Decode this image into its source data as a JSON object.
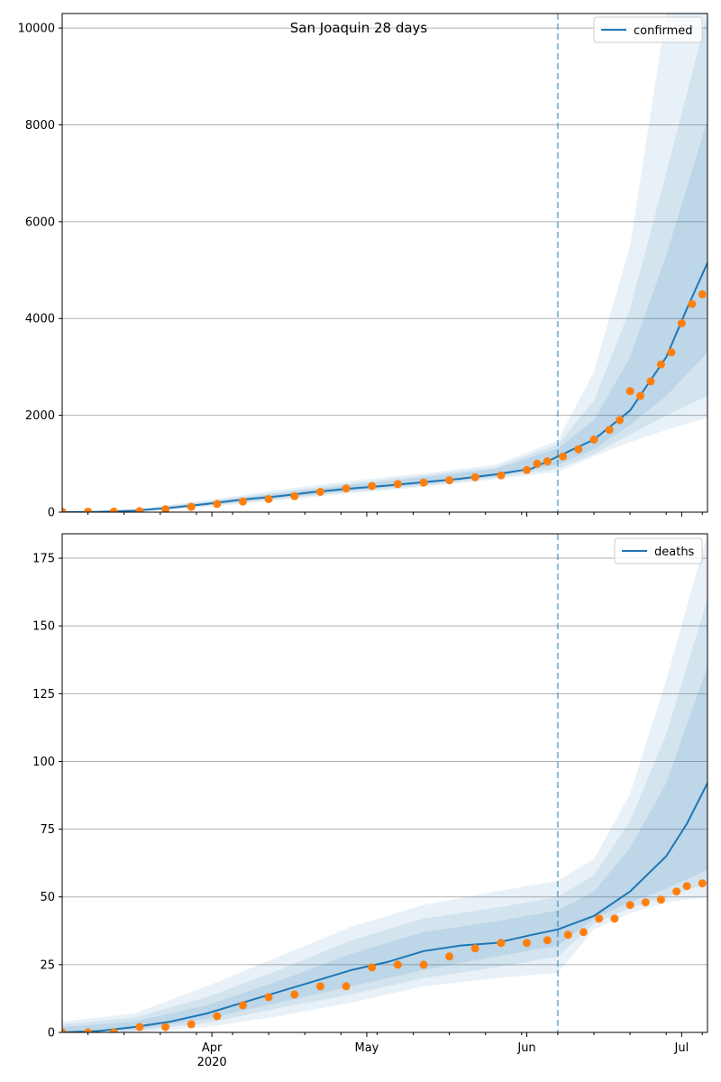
{
  "figure": {
    "title": "San Joaquin 28 days"
  },
  "chart_data": [
    {
      "type": "line",
      "panel": "top",
      "x_type": "date",
      "xlim": [
        "2020-03-03",
        "2020-07-06"
      ],
      "x_ticks": [
        {
          "date": "2020-04-01",
          "label": "Apr",
          "sublabel": "2020"
        },
        {
          "date": "2020-05-01",
          "label": "May",
          "sublabel": ""
        },
        {
          "date": "2020-06-01",
          "label": "Jun",
          "sublabel": ""
        },
        {
          "date": "2020-07-01",
          "label": "Jul",
          "sublabel": ""
        }
      ],
      "ylim": [
        0,
        10300
      ],
      "y_ticks": [
        0,
        2000,
        4000,
        6000,
        8000,
        10000
      ],
      "grid": "y",
      "legend": {
        "position": "top-right",
        "entries": [
          "confirmed"
        ]
      },
      "forecast_start": "2020-06-07",
      "colors": {
        "model": "#1f77b4",
        "observed": "#ff7f0e",
        "band": "#1f77b4"
      },
      "model": {
        "name": "confirmed",
        "x": [
          "2020-03-03",
          "2020-03-10",
          "2020-03-17",
          "2020-03-24",
          "2020-03-31",
          "2020-04-07",
          "2020-04-14",
          "2020-04-21",
          "2020-04-28",
          "2020-05-05",
          "2020-05-12",
          "2020-05-19",
          "2020-05-26",
          "2020-06-02",
          "2020-06-07",
          "2020-06-14",
          "2020-06-21",
          "2020-06-28",
          "2020-07-02",
          "2020-07-06"
        ],
        "median": [
          0,
          5,
          30,
          90,
          170,
          260,
          330,
          420,
          490,
          550,
          620,
          690,
          780,
          900,
          1150,
          1500,
          2100,
          3200,
          4200,
          5150
        ]
      },
      "bands": [
        {
          "x": [
            "2020-03-03",
            "2020-03-17",
            "2020-03-31",
            "2020-04-14",
            "2020-04-28",
            "2020-05-12",
            "2020-05-26",
            "2020-06-07",
            "2020-06-14",
            "2020-06-21",
            "2020-06-28",
            "2020-07-06"
          ],
          "lower": [
            0,
            10,
            110,
            240,
            390,
            520,
            680,
            830,
            1150,
            1450,
            1700,
            1950
          ],
          "upper": [
            10,
            60,
            250,
            460,
            650,
            800,
            980,
            1480,
            2900,
            5500,
            10300,
            10300
          ]
        },
        {
          "x": [
            "2020-03-03",
            "2020-03-17",
            "2020-03-31",
            "2020-04-14",
            "2020-04-28",
            "2020-05-12",
            "2020-05-26",
            "2020-06-07",
            "2020-06-14",
            "2020-06-21",
            "2020-06-28",
            "2020-07-06"
          ],
          "lower": [
            0,
            15,
            130,
            270,
            420,
            550,
            710,
            900,
            1200,
            1600,
            2000,
            2400
          ],
          "upper": [
            8,
            50,
            220,
            420,
            600,
            760,
            930,
            1400,
            2300,
            4200,
            7000,
            10300
          ]
        },
        {
          "x": [
            "2020-03-03",
            "2020-03-17",
            "2020-03-31",
            "2020-04-14",
            "2020-04-28",
            "2020-05-12",
            "2020-05-26",
            "2020-06-07",
            "2020-06-14",
            "2020-06-21",
            "2020-06-28",
            "2020-07-06"
          ],
          "lower": [
            0,
            20,
            145,
            290,
            445,
            580,
            740,
            980,
            1300,
            1800,
            2400,
            3300
          ],
          "upper": [
            6,
            42,
            200,
            390,
            560,
            720,
            890,
            1320,
            1900,
            3200,
            5300,
            8100
          ]
        }
      ],
      "observed": {
        "x": [
          "2020-03-03",
          "2020-03-08",
          "2020-03-13",
          "2020-03-18",
          "2020-03-23",
          "2020-03-28",
          "2020-04-02",
          "2020-04-07",
          "2020-04-12",
          "2020-04-17",
          "2020-04-22",
          "2020-04-27",
          "2020-05-02",
          "2020-05-07",
          "2020-05-12",
          "2020-05-17",
          "2020-05-22",
          "2020-05-27",
          "2020-06-01",
          "2020-06-03",
          "2020-06-05",
          "2020-06-08",
          "2020-06-11",
          "2020-06-14",
          "2020-06-17",
          "2020-06-19",
          "2020-06-21",
          "2020-06-23",
          "2020-06-25",
          "2020-06-27",
          "2020-06-29",
          "2020-07-01",
          "2020-07-03",
          "2020-07-05"
        ],
        "y": [
          10,
          10,
          10,
          20,
          60,
          110,
          170,
          220,
          270,
          330,
          420,
          490,
          540,
          580,
          610,
          660,
          720,
          760,
          870,
          1000,
          1050,
          1150,
          1300,
          1500,
          1700,
          1900,
          2500,
          2400,
          2700,
          3050,
          3300,
          3900,
          4300,
          4500
        ]
      }
    },
    {
      "type": "line",
      "panel": "bottom",
      "x_type": "date",
      "xlim": [
        "2020-03-03",
        "2020-07-06"
      ],
      "x_ticks": [
        {
          "date": "2020-04-01",
          "label": "Apr",
          "sublabel": "2020"
        },
        {
          "date": "2020-05-01",
          "label": "May",
          "sublabel": ""
        },
        {
          "date": "2020-06-01",
          "label": "Jun",
          "sublabel": ""
        },
        {
          "date": "2020-07-01",
          "label": "Jul",
          "sublabel": ""
        }
      ],
      "ylim": [
        0,
        184
      ],
      "y_ticks": [
        0,
        25,
        50,
        75,
        100,
        125,
        150,
        175
      ],
      "grid": "y",
      "legend": {
        "position": "top-right",
        "entries": [
          "deaths"
        ]
      },
      "forecast_start": "2020-06-07",
      "colors": {
        "model": "#1f77b4",
        "observed": "#ff7f0e",
        "band": "#1f77b4"
      },
      "model": {
        "name": "deaths",
        "x": [
          "2020-03-03",
          "2020-03-10",
          "2020-03-17",
          "2020-03-24",
          "2020-03-31",
          "2020-04-07",
          "2020-04-14",
          "2020-04-21",
          "2020-04-28",
          "2020-05-05",
          "2020-05-12",
          "2020-05-19",
          "2020-05-26",
          "2020-06-02",
          "2020-06-07",
          "2020-06-14",
          "2020-06-21",
          "2020-06-28",
          "2020-07-02",
          "2020-07-06"
        ],
        "median": [
          0,
          0.5,
          2,
          4,
          7,
          11,
          15,
          19,
          23,
          26,
          30,
          32,
          33,
          36,
          38,
          43,
          52,
          65,
          77,
          92
        ]
      },
      "bands": [
        {
          "x": [
            "2020-03-03",
            "2020-03-17",
            "2020-03-31",
            "2020-04-14",
            "2020-04-28",
            "2020-05-12",
            "2020-05-26",
            "2020-06-07",
            "2020-06-14",
            "2020-06-21",
            "2020-06-28",
            "2020-07-06"
          ],
          "lower": [
            0,
            0,
            2,
            6,
            11,
            17,
            20,
            22,
            38,
            44,
            48,
            50
          ],
          "upper": [
            4,
            7,
            17,
            28,
            39,
            47,
            52,
            56,
            64,
            88,
            130,
            184
          ]
        },
        {
          "x": [
            "2020-03-03",
            "2020-03-17",
            "2020-03-31",
            "2020-04-14",
            "2020-04-28",
            "2020-05-12",
            "2020-05-26",
            "2020-06-07",
            "2020-06-14",
            "2020-06-21",
            "2020-06-28",
            "2020-07-06"
          ],
          "lower": [
            0,
            0.5,
            3.5,
            9,
            14,
            20,
            24,
            28,
            40,
            46,
            50,
            55
          ],
          "upper": [
            3,
            5.5,
            13,
            23,
            34,
            42,
            46,
            50,
            58,
            78,
            110,
            160
          ]
        },
        {
          "x": [
            "2020-03-03",
            "2020-03-17",
            "2020-03-31",
            "2020-04-14",
            "2020-04-28",
            "2020-05-12",
            "2020-05-26",
            "2020-06-07",
            "2020-06-14",
            "2020-06-21",
            "2020-06-28",
            "2020-07-06"
          ],
          "lower": [
            0,
            1,
            5,
            11,
            17,
            23,
            28,
            32,
            42,
            48,
            53,
            60
          ],
          "upper": [
            2,
            4,
            10,
            19,
            29,
            37,
            41,
            45,
            52,
            68,
            92,
            135
          ]
        }
      ],
      "observed": {
        "x": [
          "2020-03-03",
          "2020-03-08",
          "2020-03-13",
          "2020-03-18",
          "2020-03-23",
          "2020-03-28",
          "2020-04-02",
          "2020-04-07",
          "2020-04-12",
          "2020-04-17",
          "2020-04-22",
          "2020-04-27",
          "2020-05-02",
          "2020-05-07",
          "2020-05-12",
          "2020-05-17",
          "2020-05-22",
          "2020-05-27",
          "2020-06-01",
          "2020-06-05",
          "2020-06-09",
          "2020-06-12",
          "2020-06-15",
          "2020-06-18",
          "2020-06-21",
          "2020-06-24",
          "2020-06-27",
          "2020-06-30",
          "2020-07-02",
          "2020-07-05"
        ],
        "y": [
          0,
          0,
          0,
          2,
          2,
          3,
          6,
          10,
          13,
          14,
          17,
          17,
          24,
          25,
          25,
          28,
          31,
          33,
          33,
          34,
          36,
          37,
          42,
          42,
          47,
          48,
          49,
          52,
          54,
          55
        ]
      }
    }
  ]
}
